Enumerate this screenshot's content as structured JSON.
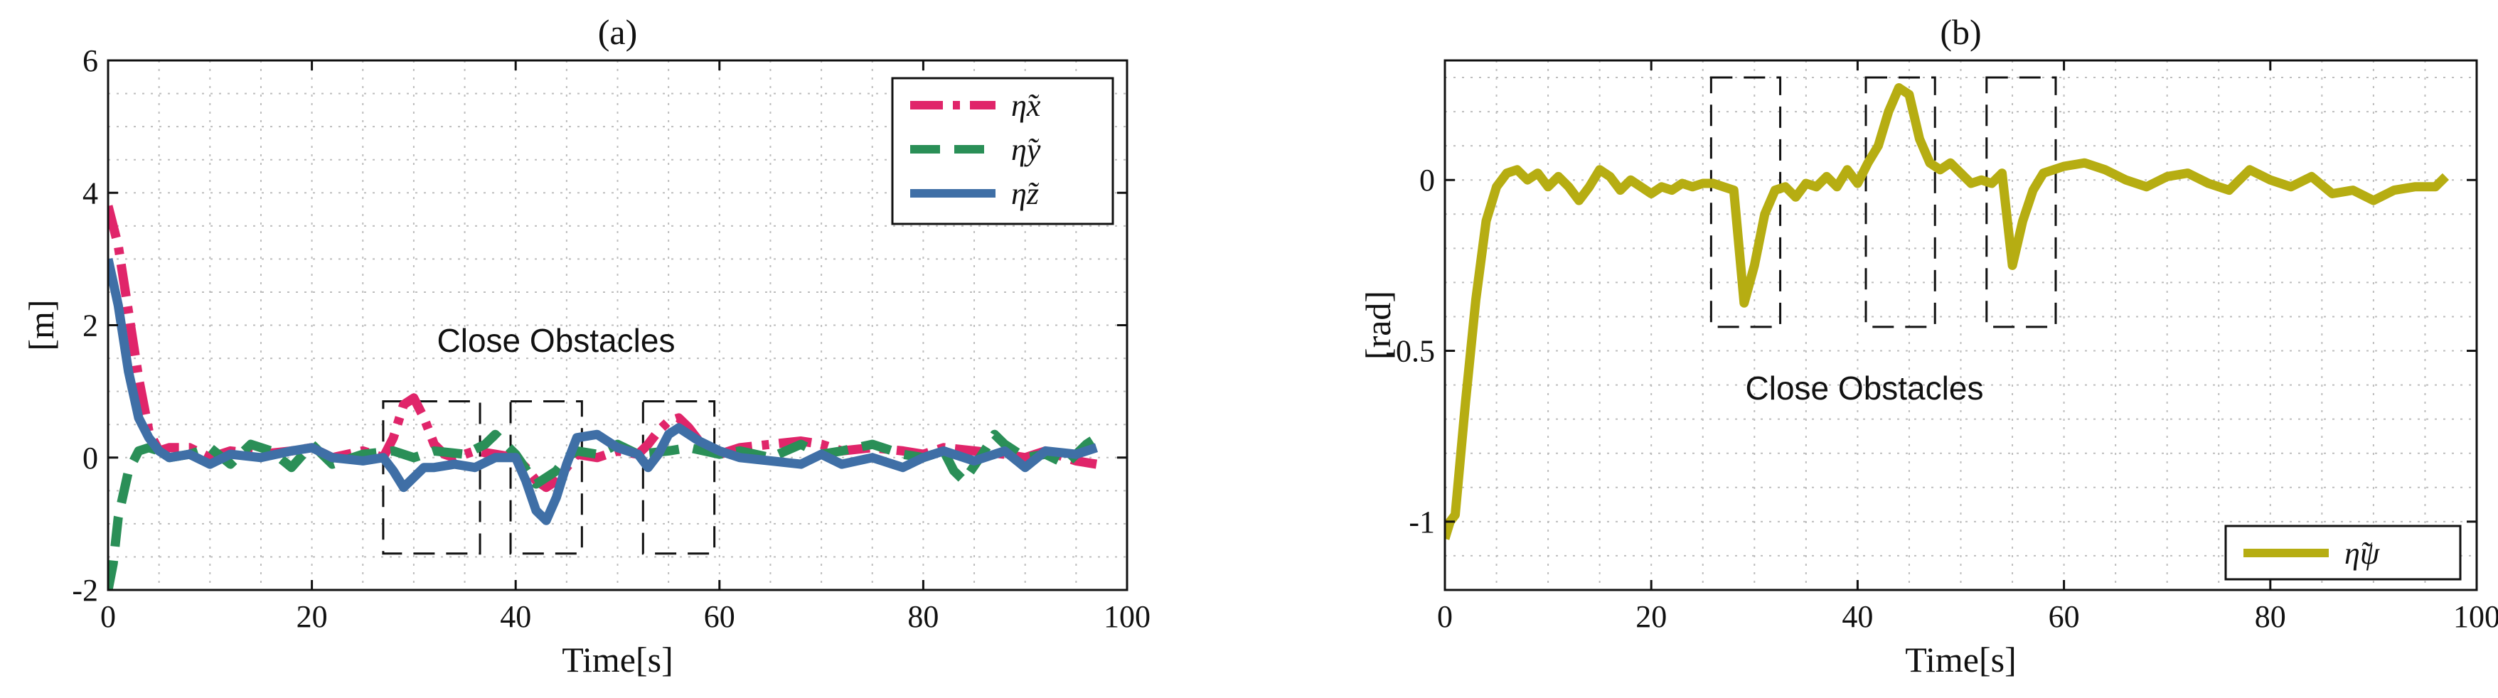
{
  "chart_data": [
    {
      "type": "line",
      "title": "(a)",
      "xlabel": "Time[s]",
      "ylabel": "[m]",
      "xlim": [
        0,
        100
      ],
      "ylim": [
        -2,
        6
      ],
      "xticks": [
        0,
        20,
        40,
        60,
        80,
        100
      ],
      "yticks": [
        -2,
        0,
        2,
        4,
        6
      ],
      "grid": true,
      "legend_position": "top-right",
      "annotation": "Close Obstacles",
      "obstacle_windows": [
        [
          27,
          36.5
        ],
        [
          39.5,
          46.5
        ],
        [
          52.5,
          59.5
        ]
      ],
      "series": [
        {
          "name": "η̃x",
          "color": "#e0256a",
          "style": "dashdot",
          "x": [
            0,
            1,
            2,
            3,
            4,
            5,
            6,
            8,
            10,
            12,
            15,
            18,
            20,
            22,
            25,
            27,
            28,
            29,
            30,
            31,
            32,
            33,
            34,
            36,
            38,
            40,
            41,
            42,
            43,
            44,
            45,
            46,
            48,
            50,
            52,
            53,
            54,
            55,
            56,
            57,
            58,
            59,
            60,
            62,
            65,
            68,
            70,
            72,
            75,
            78,
            80,
            82,
            85,
            88,
            90,
            92,
            95,
            97
          ],
          "values": [
            3.8,
            3.2,
            2.2,
            1.2,
            0.4,
            0.1,
            0.15,
            0.15,
            0.0,
            0.1,
            0.05,
            0.1,
            0.15,
            0.0,
            0.1,
            0.0,
            0.3,
            0.8,
            0.9,
            0.6,
            0.2,
            0.05,
            0.0,
            0.1,
            0.05,
            0.0,
            -0.15,
            -0.35,
            -0.45,
            -0.35,
            -0.15,
            0.05,
            0.0,
            0.1,
            0.05,
            0.2,
            0.4,
            0.55,
            0.6,
            0.45,
            0.25,
            0.1,
            0.05,
            0.15,
            0.2,
            0.25,
            0.2,
            0.1,
            0.15,
            0.1,
            0.05,
            0.15,
            0.1,
            0.05,
            0.0,
            0.1,
            -0.05,
            -0.1
          ]
        },
        {
          "name": "η̃y",
          "color": "#2a8f57",
          "style": "dashed",
          "x": [
            0,
            0.5,
            1,
            2,
            3,
            4,
            5,
            6,
            8,
            10,
            12,
            14,
            16,
            18,
            20,
            22,
            25,
            28,
            30,
            32,
            35,
            37,
            38,
            39,
            40,
            42,
            44,
            45,
            46,
            48,
            50,
            52,
            55,
            57,
            60,
            62,
            65,
            68,
            70,
            72,
            75,
            78,
            80,
            82,
            83,
            84,
            86,
            87,
            88,
            90,
            92,
            94,
            96,
            97
          ],
          "values": [
            -2.0,
            -1.6,
            -0.9,
            -0.2,
            0.1,
            0.15,
            0.1,
            0.0,
            0.05,
            0.15,
            -0.1,
            0.2,
            0.1,
            -0.15,
            0.2,
            -0.1,
            0.05,
            0.1,
            0.0,
            0.1,
            0.05,
            0.2,
            0.35,
            0.2,
            0.05,
            -0.4,
            -0.2,
            0.0,
            0.1,
            0.05,
            0.2,
            0.05,
            0.1,
            0.15,
            0.05,
            0.1,
            0.0,
            0.2,
            0.05,
            0.1,
            0.2,
            0.05,
            0.0,
            0.1,
            -0.2,
            -0.35,
            0.1,
            0.35,
            0.2,
            0.0,
            0.05,
            -0.1,
            0.2,
            0.3
          ]
        },
        {
          "name": "η̃z",
          "color": "#3f6fa6",
          "style": "solid",
          "x": [
            0,
            1,
            2,
            3,
            4,
            5,
            6,
            8,
            10,
            12,
            15,
            18,
            20,
            22,
            25,
            27,
            28,
            29,
            30,
            31,
            32,
            34,
            36,
            38,
            40,
            41,
            42,
            43,
            44,
            45,
            46,
            48,
            50,
            52,
            53,
            54,
            55,
            56,
            57,
            58,
            60,
            62,
            65,
            68,
            70,
            72,
            75,
            78,
            80,
            82,
            85,
            88,
            90,
            92,
            95,
            97
          ],
          "values": [
            3.0,
            2.3,
            1.3,
            0.6,
            0.3,
            0.1,
            0.0,
            0.05,
            -0.1,
            0.05,
            0.0,
            0.1,
            0.15,
            0.0,
            -0.05,
            0.0,
            -0.2,
            -0.45,
            -0.3,
            -0.15,
            -0.15,
            -0.1,
            -0.15,
            0.0,
            0.0,
            -0.35,
            -0.8,
            -0.95,
            -0.6,
            -0.1,
            0.3,
            0.35,
            0.15,
            0.05,
            -0.15,
            0.05,
            0.35,
            0.45,
            0.35,
            0.25,
            0.1,
            0.0,
            -0.05,
            -0.1,
            0.05,
            -0.1,
            0.0,
            -0.15,
            0.0,
            0.1,
            -0.05,
            0.1,
            -0.15,
            0.1,
            0.05,
            0.15
          ]
        }
      ]
    },
    {
      "type": "line",
      "title": "(b)",
      "xlabel": "Time[s]",
      "ylabel": "[rad]",
      "xlim": [
        0,
        100
      ],
      "ylim": [
        -1.2,
        0.35
      ],
      "xticks": [
        0,
        20,
        40,
        60,
        80,
        100
      ],
      "yticks": [
        -1,
        -0.5,
        0
      ],
      "grid": true,
      "legend_position": "bottom-right",
      "annotation": "Close Obstacles",
      "obstacle_windows": [
        [
          25.8,
          32.5
        ],
        [
          40.8,
          47.5
        ],
        [
          52.5,
          59.2
        ]
      ],
      "series": [
        {
          "name": "η̃ψ",
          "color": "#b6ad12",
          "style": "solid",
          "x": [
            0,
            0.5,
            1,
            2,
            3,
            4,
            5,
            6,
            7,
            8,
            9,
            10,
            11,
            12,
            13,
            14,
            15,
            16,
            17,
            18,
            19,
            20,
            21,
            22,
            23,
            24,
            25,
            26,
            27,
            28,
            29,
            30,
            31,
            32,
            33,
            34,
            35,
            36,
            37,
            38,
            39,
            40,
            41,
            42,
            43,
            44,
            45,
            46,
            47,
            48,
            49,
            50,
            51,
            52,
            53,
            54,
            55,
            56,
            57,
            58,
            60,
            62,
            64,
            66,
            68,
            70,
            72,
            74,
            76,
            78,
            80,
            82,
            84,
            86,
            88,
            90,
            92,
            94,
            96,
            97
          ],
          "values": [
            -1.05,
            -1.0,
            -0.98,
            -0.65,
            -0.35,
            -0.12,
            -0.02,
            0.02,
            0.03,
            0.0,
            0.02,
            -0.02,
            0.01,
            -0.02,
            -0.06,
            -0.02,
            0.03,
            0.01,
            -0.03,
            0.0,
            -0.02,
            -0.04,
            -0.02,
            -0.03,
            -0.01,
            -0.02,
            -0.01,
            -0.01,
            -0.02,
            -0.03,
            -0.36,
            -0.25,
            -0.1,
            -0.03,
            -0.02,
            -0.05,
            -0.01,
            -0.02,
            0.01,
            -0.02,
            0.03,
            -0.01,
            0.05,
            0.1,
            0.2,
            0.27,
            0.25,
            0.12,
            0.05,
            0.03,
            0.05,
            0.02,
            -0.01,
            0.0,
            -0.01,
            0.02,
            -0.25,
            -0.12,
            -0.03,
            0.02,
            0.04,
            0.05,
            0.03,
            0.0,
            -0.02,
            0.01,
            0.02,
            -0.01,
            -0.03,
            0.03,
            0.0,
            -0.02,
            0.01,
            -0.04,
            -0.03,
            -0.06,
            -0.03,
            -0.02,
            -0.02,
            0.01
          ]
        }
      ]
    }
  ]
}
